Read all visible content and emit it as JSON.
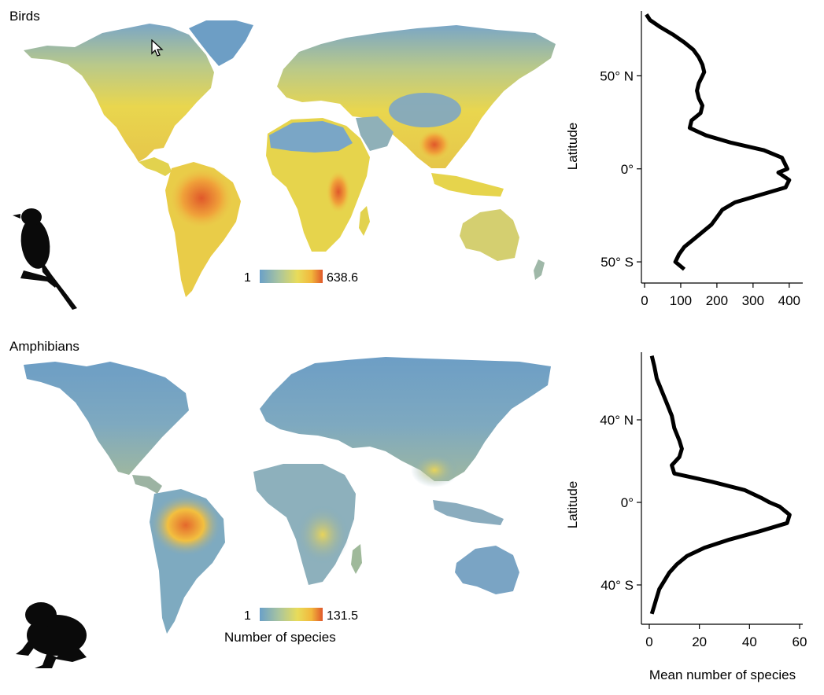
{
  "colors": {
    "scale": [
      "#6aa0c8",
      "#a8c4a0",
      "#e8dc5a",
      "#f2b83c",
      "#e0582a"
    ],
    "land_low": "#6e9fc5",
    "profile": "#000000",
    "silhouette": "#0a0a0a"
  },
  "panels": {
    "birds": {
      "title": "Birds",
      "legend_min": "1",
      "legend_max": "638.6",
      "icon": "bird-silhouette"
    },
    "amphibians": {
      "title": "Amphibians",
      "legend_min": "1",
      "legend_max": "131.5",
      "legend_label": "Number of species",
      "icon": "frog-silhouette"
    }
  },
  "chart_data": [
    {
      "type": "line",
      "name": "birds-latitude-profile",
      "ylabel": "Latitude",
      "xlim": [
        0,
        420
      ],
      "ylim": [
        -58,
        84
      ],
      "x_ticks": [
        "0",
        "100",
        "200",
        "300",
        "400"
      ],
      "x_tick_values": [
        0,
        100,
        200,
        300,
        400
      ],
      "y_ticks": [
        "50° N",
        "0°",
        "50° S"
      ],
      "y_tick_values": [
        50,
        0,
        -50
      ],
      "points_lat": [
        83,
        80,
        76,
        72,
        68,
        64,
        60,
        56,
        52,
        50,
        46,
        42,
        38,
        34,
        30,
        26,
        22,
        18,
        14,
        10,
        6,
        2,
        0,
        -2,
        -6,
        -10,
        -14,
        -18,
        -22,
        -26,
        -30,
        -34,
        -38,
        -42,
        -46,
        -50,
        -54
      ],
      "points_val": [
        5,
        15,
        45,
        80,
        110,
        135,
        150,
        160,
        165,
        160,
        150,
        145,
        150,
        160,
        155,
        130,
        125,
        170,
        240,
        330,
        380,
        390,
        395,
        370,
        400,
        390,
        320,
        250,
        215,
        200,
        185,
        160,
        135,
        110,
        95,
        85,
        110
      ]
    },
    {
      "type": "line",
      "name": "amphibians-latitude-profile",
      "ylabel": "Latitude",
      "xlabel": "Mean number of species",
      "xlim": [
        0,
        60
      ],
      "ylim": [
        -56,
        72
      ],
      "x_ticks": [
        "0",
        "20",
        "40",
        "60"
      ],
      "x_tick_values": [
        0,
        20,
        40,
        60
      ],
      "y_ticks": [
        "40° N",
        "0°",
        "40° S"
      ],
      "y_tick_values": [
        40,
        0,
        -40
      ],
      "points_lat": [
        71,
        66,
        60,
        54,
        48,
        42,
        36,
        30,
        26,
        22,
        18,
        14,
        10,
        6,
        2,
        0,
        -2,
        -6,
        -10,
        -14,
        -18,
        -22,
        -26,
        -30,
        -34,
        -38,
        -42,
        -46,
        -50,
        -54
      ],
      "points_val": [
        1,
        2,
        3,
        5,
        7,
        9,
        10,
        12,
        13,
        12,
        9,
        10,
        25,
        38,
        45,
        48,
        52,
        56,
        55,
        44,
        32,
        22,
        15,
        11,
        8,
        6,
        4,
        3,
        2,
        1
      ]
    }
  ]
}
